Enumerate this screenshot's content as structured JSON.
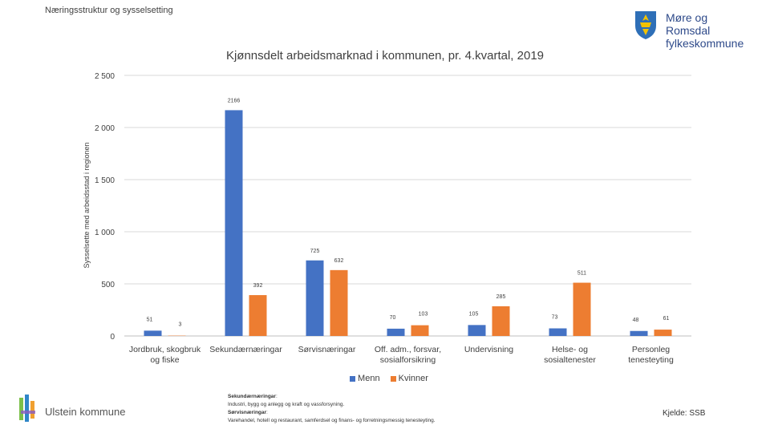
{
  "header": {
    "title": "Næringsstruktur og sysselsetting"
  },
  "logo": {
    "line1": "Møre og Romsdal",
    "line2": "fylkeskommune",
    "icon": "coat-of-arms-icon"
  },
  "chart_data": {
    "type": "bar",
    "title": "Kjønnsdelt arbeidsmarknad i kommunen, pr. 4.kvartal, 2019",
    "ylabel": "Sysselsette med arbeidsstad i regionen",
    "xlabel": "",
    "ylim": [
      0,
      2500
    ],
    "yticks": [
      0,
      500,
      1000,
      1500,
      2000,
      2500
    ],
    "ytick_labels": [
      "0",
      "500",
      "1 000",
      "1 500",
      "2 000",
      "2 500"
    ],
    "categories": [
      [
        "Jordbruk, skogbruk",
        "og fiske"
      ],
      [
        "Sekundærnæringar"
      ],
      [
        "Sørvisnæringar"
      ],
      [
        "Off. adm., forsvar,",
        "sosialforsikring"
      ],
      [
        "Undervisning"
      ],
      [
        "Helse- og",
        "sosialtenester"
      ],
      [
        "Personleg",
        "tenesteyting"
      ]
    ],
    "series": [
      {
        "name": "Menn",
        "color": "#4472c4",
        "values": [
          51,
          2166,
          725,
          70,
          105,
          73,
          48
        ]
      },
      {
        "name": "Kvinner",
        "color": "#ed7d31",
        "values": [
          3,
          392,
          632,
          103,
          285,
          511,
          61
        ]
      }
    ],
    "grid": "horizontal",
    "legend_position": "bottom"
  },
  "footer": {
    "municipality": "Ulstein kommune",
    "note_sec_label": "Sekundærnæringar",
    "note_sec_text": "Industri, bygg og anlegg og kraft og vassforsyning.",
    "note_serv_label": "Sørvisnæringar",
    "note_serv_text": "Varehandel, hotell og restaurant, samferdsel og finans- og forretningsmessig tenesteyting.",
    "source": "Kjelde: SSB"
  }
}
